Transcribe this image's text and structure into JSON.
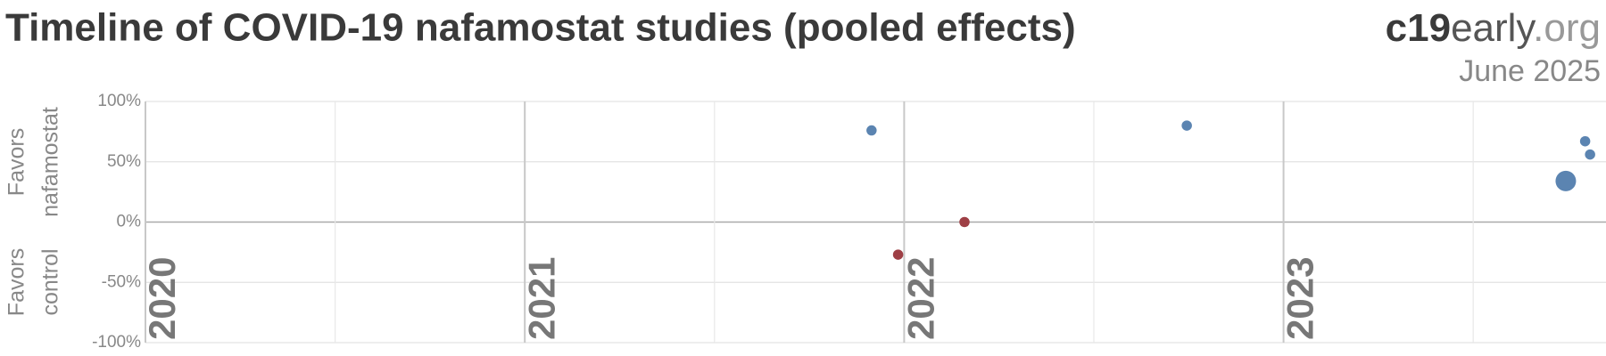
{
  "chart_data": {
    "type": "scatter",
    "title": "Timeline of COVID-19 nafamostat studies (pooled effects)",
    "brand": [
      "c19",
      "early",
      ".org"
    ],
    "date": "June 2025",
    "y_label_top": [
      "Favors",
      "nafamostat"
    ],
    "y_label_bottom": [
      "Favors",
      "control"
    ],
    "x": [
      2021.914,
      2021.984,
      2022.159,
      2022.745,
      2023.795,
      2023.808,
      2023.744
    ],
    "values": [
      76,
      -27,
      0,
      80,
      67,
      56,
      34
    ],
    "sizes": [
      5,
      5,
      5,
      5,
      5,
      5,
      10
    ],
    "colors": [
      "#5b84b1",
      "#9e3f45",
      "#9e3f45",
      "#5b84b1",
      "#5b84b1",
      "#5b84b1",
      "#5b84b1"
    ],
    "xlim": [
      2020,
      2023.85
    ],
    "xticks": [
      2020,
      2021,
      2022,
      2023
    ],
    "x_minor_ticks": [
      2020.5,
      2021.5,
      2022.5,
      2023.5
    ],
    "ylim": [
      -100,
      100
    ],
    "yticks": [
      {
        "value": -100,
        "label": "-100%"
      },
      {
        "value": -50,
        "label": "-50%"
      },
      {
        "value": 0,
        "label": "0%"
      },
      {
        "value": 50,
        "label": "50%"
      },
      {
        "value": 100,
        "label": "100%"
      }
    ],
    "grid": true
  }
}
